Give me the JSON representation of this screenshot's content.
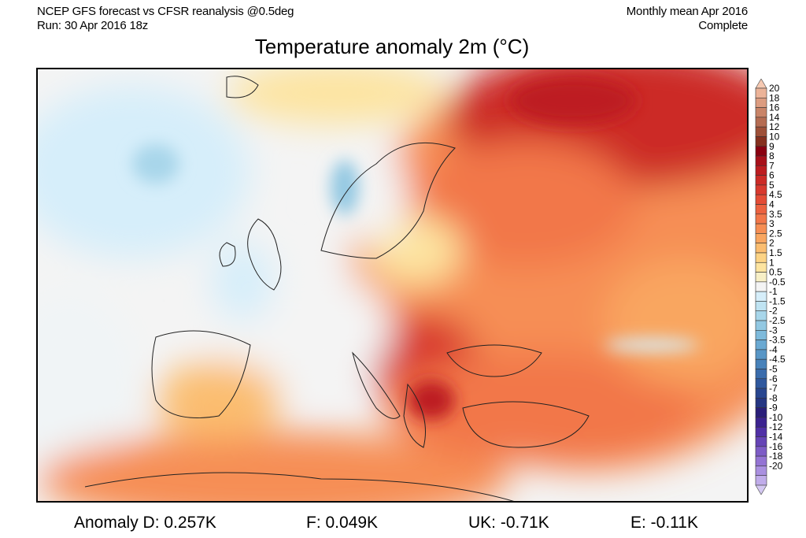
{
  "header": {
    "left_line1": "NCEP GFS forecast vs CFSR reanalysis @0.5deg",
    "left_line2": "Run: 30 Apr 2016 18z",
    "right_line1": "Monthly mean Apr 2016",
    "right_line2": "Complete",
    "title": "Temperature anomaly 2m (°C)"
  },
  "colorbar": {
    "labels": [
      "20",
      "18",
      "16",
      "14",
      "12",
      "10",
      "9",
      "8",
      "7",
      "6",
      "5",
      "4.5",
      "4",
      "3.5",
      "3",
      "2.5",
      "2",
      "1.5",
      "1",
      "0.5",
      "-0.5",
      "-1",
      "-1.5",
      "-2",
      "-2.5",
      "-3",
      "-3.5",
      "-4",
      "-4.5",
      "-5",
      "-6",
      "-7",
      "-8",
      "-9",
      "-10",
      "-12",
      "-14",
      "-16",
      "-18",
      "-20"
    ],
    "colors": [
      "#f6c9b2",
      "#ecb398",
      "#dc9c80",
      "#c98468",
      "#b56c52",
      "#9e5038",
      "#86301e",
      "#8a0010",
      "#a8101a",
      "#bd1c20",
      "#cc2a26",
      "#d8392e",
      "#e44c36",
      "#ec6240",
      "#f2774a",
      "#f68e54",
      "#f9a660",
      "#fbbd70",
      "#fcd385",
      "#fde4a0",
      "#f7efc6",
      "#f4f4f4",
      "#d6eefa",
      "#bfe3f2",
      "#a8d6ea",
      "#92c8e2",
      "#7ebadb",
      "#6aa9d2",
      "#5896c6",
      "#4882ba",
      "#3a6cac",
      "#2f589e",
      "#284690",
      "#253683",
      "#2a1e7a",
      "#3c2390",
      "#5030a6",
      "#6544b6",
      "#7d5cc6",
      "#9474d4",
      "#aa90e0",
      "#c0acea",
      "#d4c8f2"
    ]
  },
  "stats": {
    "anomaly_d": "Anomaly D: 0.257K",
    "f": "F: 0.049K",
    "uk": "UK: -0.71K",
    "e": "E: -0.11K"
  }
}
